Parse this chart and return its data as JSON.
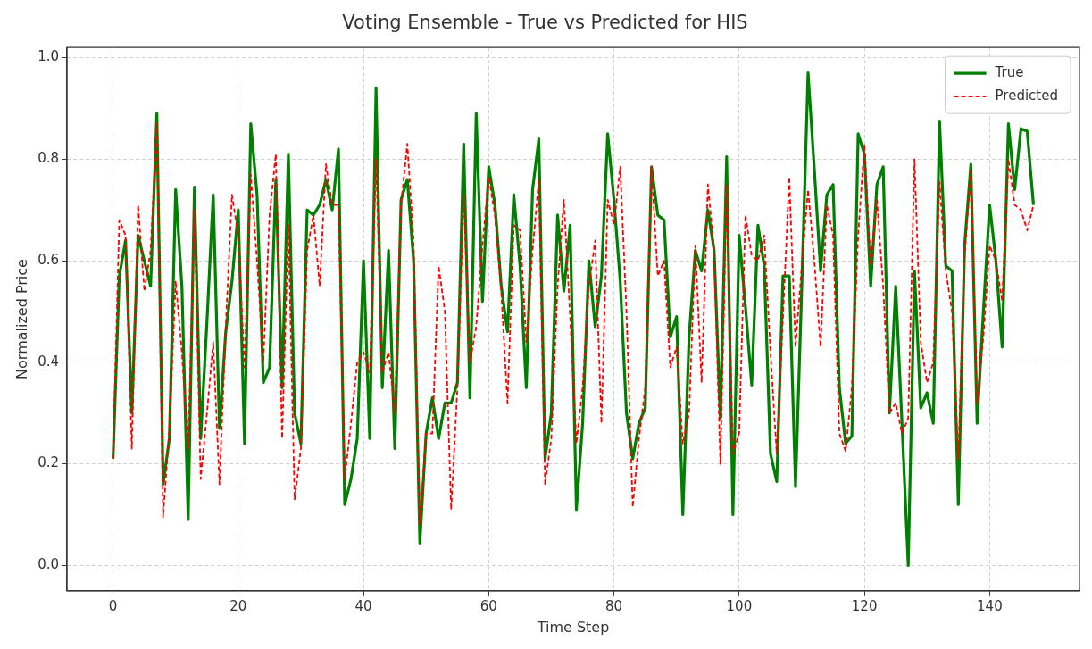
{
  "chart_data": {
    "type": "line",
    "title": "Voting Ensemble - True vs Predicted for HIS",
    "xlabel": "Time Step",
    "ylabel": "Normalized Price",
    "x": [
      0,
      1,
      2,
      3,
      4,
      5,
      6,
      7,
      8,
      9,
      10,
      11,
      12,
      13,
      14,
      15,
      16,
      17,
      18,
      19,
      20,
      21,
      22,
      23,
      24,
      25,
      26,
      27,
      28,
      29,
      30,
      31,
      32,
      33,
      34,
      35,
      36,
      37,
      38,
      39,
      40,
      41,
      42,
      43,
      44,
      45,
      46,
      47,
      48,
      49,
      50,
      51,
      52,
      53,
      54,
      55,
      56,
      57,
      58,
      59,
      60,
      61,
      62,
      63,
      64,
      65,
      66,
      67,
      68,
      69,
      70,
      71,
      72,
      73,
      74,
      75,
      76,
      77,
      78,
      79,
      80,
      81,
      82,
      83,
      84,
      85,
      86,
      87,
      88,
      89,
      90,
      91,
      92,
      93,
      94,
      95,
      96,
      97,
      98,
      99,
      100,
      101,
      102,
      103,
      104,
      105,
      106,
      107,
      108,
      109,
      110,
      111,
      112,
      113,
      114,
      115,
      116,
      117,
      118,
      119,
      120,
      121,
      122,
      123,
      124,
      125,
      126,
      127,
      128,
      129,
      130,
      131,
      132,
      133,
      134,
      135,
      136,
      137,
      138,
      139,
      140,
      141,
      142,
      143,
      144,
      145,
      146,
      147
    ],
    "series": [
      {
        "name": "True",
        "color": "#008000",
        "line_style": "solid",
        "values": [
          0.21,
          0.57,
          0.64,
          0.3,
          0.65,
          0.6,
          0.55,
          0.89,
          0.16,
          0.25,
          0.74,
          0.55,
          0.09,
          0.745,
          0.25,
          0.48,
          0.73,
          0.27,
          0.46,
          0.56,
          0.7,
          0.24,
          0.87,
          0.73,
          0.36,
          0.39,
          0.76,
          0.35,
          0.81,
          0.3,
          0.24,
          0.7,
          0.69,
          0.71,
          0.76,
          0.7,
          0.82,
          0.12,
          0.17,
          0.25,
          0.6,
          0.25,
          0.94,
          0.35,
          0.62,
          0.23,
          0.72,
          0.76,
          0.6,
          0.044,
          0.26,
          0.33,
          0.25,
          0.32,
          0.32,
          0.36,
          0.83,
          0.33,
          0.89,
          0.52,
          0.785,
          0.71,
          0.55,
          0.46,
          0.73,
          0.59,
          0.35,
          0.74,
          0.84,
          0.21,
          0.3,
          0.69,
          0.54,
          0.67,
          0.11,
          0.28,
          0.6,
          0.47,
          0.57,
          0.85,
          0.72,
          0.56,
          0.3,
          0.21,
          0.28,
          0.31,
          0.785,
          0.69,
          0.68,
          0.45,
          0.49,
          0.1,
          0.45,
          0.62,
          0.58,
          0.7,
          0.62,
          0.29,
          0.805,
          0.1,
          0.65,
          0.51,
          0.355,
          0.67,
          0.59,
          0.22,
          0.165,
          0.57,
          0.57,
          0.155,
          0.55,
          0.97,
          0.78,
          0.58,
          0.73,
          0.75,
          0.35,
          0.24,
          0.255,
          0.85,
          0.81,
          0.55,
          0.75,
          0.785,
          0.3,
          0.55,
          0.28,
          0.0,
          0.58,
          0.31,
          0.34,
          0.28,
          0.875,
          0.59,
          0.58,
          0.12,
          0.63,
          0.79,
          0.28,
          0.5,
          0.71,
          0.6,
          0.43,
          0.87,
          0.74,
          0.86,
          0.855,
          0.71
        ]
      },
      {
        "name": "Predicted",
        "color": "#ff0000",
        "line_style": "dashed",
        "values": [
          0.21,
          0.68,
          0.65,
          0.23,
          0.71,
          0.54,
          0.62,
          0.87,
          0.095,
          0.27,
          0.56,
          0.42,
          0.23,
          0.7,
          0.17,
          0.3,
          0.44,
          0.16,
          0.47,
          0.73,
          0.65,
          0.39,
          0.77,
          0.6,
          0.4,
          0.69,
          0.81,
          0.25,
          0.67,
          0.13,
          0.23,
          0.62,
          0.69,
          0.55,
          0.79,
          0.71,
          0.71,
          0.17,
          0.28,
          0.4,
          0.42,
          0.38,
          0.8,
          0.38,
          0.42,
          0.3,
          0.71,
          0.83,
          0.64,
          0.08,
          0.26,
          0.26,
          0.59,
          0.5,
          0.11,
          0.35,
          0.73,
          0.4,
          0.47,
          0.63,
          0.765,
          0.69,
          0.54,
          0.32,
          0.67,
          0.66,
          0.44,
          0.62,
          0.76,
          0.16,
          0.25,
          0.55,
          0.72,
          0.49,
          0.24,
          0.35,
          0.55,
          0.64,
          0.28,
          0.72,
          0.67,
          0.785,
          0.5,
          0.115,
          0.25,
          0.35,
          0.785,
          0.57,
          0.6,
          0.39,
          0.43,
          0.24,
          0.3,
          0.63,
          0.36,
          0.75,
          0.62,
          0.2,
          0.75,
          0.22,
          0.26,
          0.69,
          0.61,
          0.6,
          0.65,
          0.42,
          0.22,
          0.49,
          0.765,
          0.43,
          0.59,
          0.74,
          0.6,
          0.43,
          0.71,
          0.65,
          0.26,
          0.225,
          0.35,
          0.65,
          0.83,
          0.59,
          0.72,
          0.55,
          0.3,
          0.32,
          0.26,
          0.29,
          0.8,
          0.44,
          0.36,
          0.4,
          0.755,
          0.58,
          0.5,
          0.21,
          0.61,
          0.775,
          0.32,
          0.45,
          0.63,
          0.6,
          0.52,
          0.8,
          0.71,
          0.7,
          0.66,
          0.71
        ]
      }
    ],
    "xlim": [
      -7.35,
      154.35
    ],
    "xticks": [
      0,
      20,
      40,
      60,
      80,
      100,
      120,
      140
    ],
    "ylim": [
      -0.05,
      1.02
    ],
    "yticks": [
      {
        "value": 0,
        "label": "0.0"
      },
      0.2,
      0.4,
      0.6,
      0.8,
      {
        "value": 1,
        "label": "1.0"
      }
    ],
    "grid": true,
    "legend": "top right",
    "marker": "none"
  }
}
